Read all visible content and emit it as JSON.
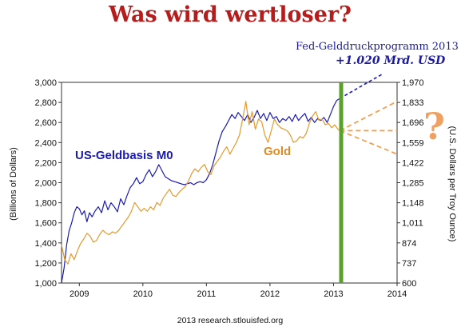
{
  "title": "Was wird wertloser?",
  "source": "2013 research.stlouisfed.org",
  "annotations": {
    "fed_line1": "Fed-Gelddruckprogramm 2013",
    "fed_line2": "+1.020 Mrd. USD",
    "m0_label": "US-Geldbasis M0",
    "gold_label": "Gold",
    "question_mark": "?"
  },
  "colors": {
    "m0": "#1c1cb4",
    "gold": "#e39a2e",
    "projection_m0": "#1c1cb4",
    "projection_gold": "#f0a050",
    "marker": "#5aa02c",
    "title": "#b71c1c"
  },
  "chart_data": {
    "type": "line",
    "title": "Was wird wertloser?",
    "xlabel": "",
    "ylabel_left": "(Billions of Dollars)",
    "ylabel_right": "(U.S. Dollars per Troy Ounce)",
    "xlim": [
      2008.72,
      2014.0
    ],
    "x_ticks": [
      2009,
      2010,
      2011,
      2012,
      2013,
      2014
    ],
    "ylim_left": [
      1000,
      3000
    ],
    "y_ticks_left": [
      1000,
      1200,
      1400,
      1600,
      1800,
      2000,
      2200,
      2400,
      2600,
      2800,
      3000
    ],
    "ylim_right": [
      600,
      1970
    ],
    "y_ticks_right": [
      600,
      737,
      874,
      1011,
      1148,
      1285,
      1422,
      1559,
      1696,
      1833,
      1970
    ],
    "grid": false,
    "legend": "none",
    "series": [
      {
        "name": "US-Geldbasis M0",
        "axis": "left",
        "x": [
          2008.72,
          2008.76,
          2008.8,
          2008.84,
          2008.88,
          2008.92,
          2008.96,
          2009.0,
          2009.04,
          2009.08,
          2009.12,
          2009.16,
          2009.2,
          2009.25,
          2009.3,
          2009.35,
          2009.4,
          2009.45,
          2009.5,
          2009.55,
          2009.6,
          2009.65,
          2009.7,
          2009.75,
          2009.8,
          2009.85,
          2009.9,
          2009.95,
          2010.0,
          2010.05,
          2010.1,
          2010.15,
          2010.2,
          2010.25,
          2010.3,
          2010.35,
          2010.4,
          2010.45,
          2010.5,
          2010.55,
          2010.6,
          2010.65,
          2010.7,
          2010.75,
          2010.8,
          2010.85,
          2010.9,
          2010.95,
          2011.0,
          2011.05,
          2011.1,
          2011.15,
          2011.2,
          2011.25,
          2011.3,
          2011.35,
          2011.4,
          2011.45,
          2011.5,
          2011.55,
          2011.6,
          2011.65,
          2011.7,
          2011.75,
          2011.8,
          2011.85,
          2011.9,
          2011.95,
          2012.0,
          2012.05,
          2012.1,
          2012.15,
          2012.2,
          2012.25,
          2012.3,
          2012.35,
          2012.4,
          2012.45,
          2012.5,
          2012.55,
          2012.6,
          2012.65,
          2012.7,
          2012.75,
          2012.8,
          2012.85,
          2012.9,
          2012.95,
          2013.0,
          2013.05,
          2013.1
        ],
        "values": [
          1000,
          1150,
          1380,
          1520,
          1600,
          1700,
          1760,
          1740,
          1680,
          1720,
          1610,
          1700,
          1660,
          1720,
          1760,
          1700,
          1820,
          1730,
          1800,
          1760,
          1710,
          1840,
          1780,
          1870,
          1950,
          1990,
          2050,
          1990,
          2010,
          2080,
          2130,
          2060,
          2110,
          2180,
          2120,
          2060,
          2040,
          2020,
          2010,
          2000,
          1990,
          1980,
          1990,
          2000,
          1980,
          2000,
          2010,
          2000,
          2030,
          2090,
          2180,
          2300,
          2420,
          2510,
          2560,
          2620,
          2680,
          2640,
          2700,
          2660,
          2620,
          2680,
          2600,
          2650,
          2720,
          2640,
          2690,
          2620,
          2700,
          2640,
          2660,
          2600,
          2640,
          2620,
          2660,
          2610,
          2680,
          2620,
          2660,
          2690,
          2610,
          2650,
          2600,
          2640,
          2620,
          2650,
          2600,
          2680,
          2760,
          2820,
          2840
        ]
      },
      {
        "name": "Gold",
        "axis": "right",
        "x": [
          2008.72,
          2008.77,
          2008.82,
          2008.87,
          2008.92,
          2008.97,
          2009.02,
          2009.07,
          2009.12,
          2009.17,
          2009.22,
          2009.27,
          2009.32,
          2009.37,
          2009.42,
          2009.47,
          2009.52,
          2009.57,
          2009.62,
          2009.67,
          2009.72,
          2009.77,
          2009.82,
          2009.87,
          2009.92,
          2009.97,
          2010.02,
          2010.07,
          2010.12,
          2010.17,
          2010.22,
          2010.27,
          2010.32,
          2010.37,
          2010.42,
          2010.47,
          2010.52,
          2010.57,
          2010.62,
          2010.67,
          2010.72,
          2010.77,
          2010.82,
          2010.87,
          2010.92,
          2010.97,
          2011.02,
          2011.07,
          2011.12,
          2011.17,
          2011.22,
          2011.27,
          2011.32,
          2011.37,
          2011.42,
          2011.47,
          2011.52,
          2011.57,
          2011.62,
          2011.67,
          2011.72,
          2011.77,
          2011.82,
          2011.87,
          2011.92,
          2011.97,
          2012.02,
          2012.07,
          2012.12,
          2012.17,
          2012.22,
          2012.27,
          2012.32,
          2012.37,
          2012.42,
          2012.47,
          2012.52,
          2012.57,
          2012.62,
          2012.67,
          2012.72,
          2012.77,
          2012.82,
          2012.87,
          2012.92,
          2012.97,
          2013.02,
          2013.07,
          2013.1
        ],
        "values": [
          860,
          760,
          730,
          800,
          760,
          820,
          870,
          900,
          940,
          920,
          880,
          890,
          930,
          960,
          940,
          930,
          950,
          940,
          960,
          990,
          1020,
          1050,
          1090,
          1150,
          1120,
          1090,
          1110,
          1090,
          1120,
          1100,
          1150,
          1130,
          1180,
          1210,
          1240,
          1200,
          1190,
          1220,
          1240,
          1260,
          1300,
          1350,
          1380,
          1360,
          1390,
          1410,
          1360,
          1340,
          1400,
          1430,
          1460,
          1500,
          1530,
          1480,
          1520,
          1560,
          1610,
          1720,
          1840,
          1680,
          1770,
          1650,
          1720,
          1700,
          1610,
          1560,
          1640,
          1720,
          1680,
          1660,
          1650,
          1640,
          1610,
          1560,
          1570,
          1600,
          1590,
          1620,
          1690,
          1740,
          1770,
          1710,
          1720,
          1680,
          1690,
          1660,
          1680,
          1650,
          1640
        ]
      }
    ],
    "projections": [
      {
        "series": "US-Geldbasis M0",
        "from": [
          2013.1,
          2840
        ],
        "to": [
          2014.0,
          3400
        ],
        "style": "dashed"
      },
      {
        "series": "Gold",
        "from": [
          2013.1,
          1640
        ],
        "to": [
          2014.0,
          1840
        ],
        "style": "dashed"
      },
      {
        "series": "Gold",
        "from": [
          2013.1,
          1640
        ],
        "to": [
          2014.0,
          1640
        ],
        "style": "dashed"
      },
      {
        "series": "Gold",
        "from": [
          2013.1,
          1640
        ],
        "to": [
          2014.0,
          1480
        ],
        "style": "dashed"
      }
    ],
    "marker_line": {
      "x": 2013.12,
      "color": "#5aa02c"
    }
  }
}
